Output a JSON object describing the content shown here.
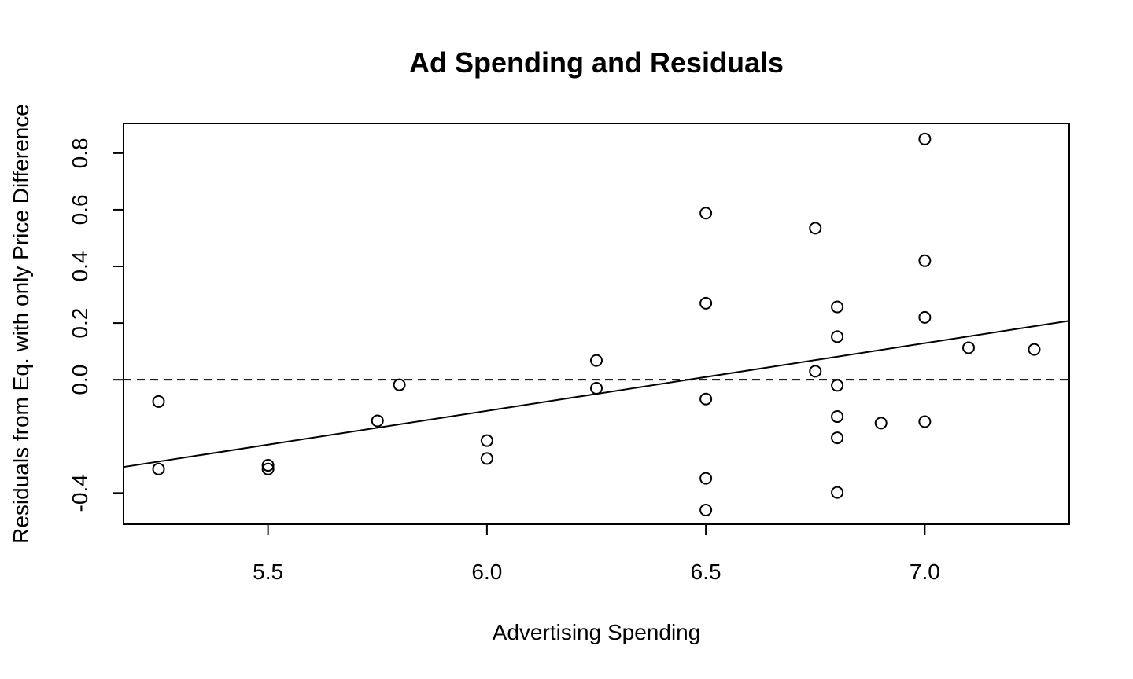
{
  "chart_data": {
    "type": "scatter",
    "title": "Ad Spending and Residuals",
    "xlabel": "Advertising Spending",
    "ylabel": "Residuals from Eq. with only Price Difference",
    "xlim": [
      5.17,
      7.33
    ],
    "ylim": [
      -0.51,
      0.905
    ],
    "x_ticks": [
      5.5,
      6.0,
      6.5,
      7.0
    ],
    "x_tick_labels": [
      "5.5",
      "6.0",
      "6.5",
      "7.0"
    ],
    "y_ticks": [
      -0.4,
      0.0,
      0.2,
      0.4,
      0.6,
      0.8
    ],
    "y_tick_labels": [
      "-0.4",
      "0.0",
      "0.2",
      "0.4",
      "0.6",
      "0.8"
    ],
    "grid": false,
    "points": [
      {
        "x": 5.25,
        "y": -0.077
      },
      {
        "x": 5.25,
        "y": -0.315
      },
      {
        "x": 5.5,
        "y": -0.302
      },
      {
        "x": 5.5,
        "y": -0.315
      },
      {
        "x": 5.75,
        "y": -0.145
      },
      {
        "x": 5.8,
        "y": -0.018
      },
      {
        "x": 6.0,
        "y": -0.215
      },
      {
        "x": 6.0,
        "y": -0.278
      },
      {
        "x": 6.25,
        "y": 0.068
      },
      {
        "x": 6.25,
        "y": -0.03
      },
      {
        "x": 6.5,
        "y": 0.588
      },
      {
        "x": 6.5,
        "y": 0.27
      },
      {
        "x": 6.5,
        "y": -0.068
      },
      {
        "x": 6.5,
        "y": -0.348
      },
      {
        "x": 6.5,
        "y": -0.46
      },
      {
        "x": 6.75,
        "y": 0.535
      },
      {
        "x": 6.75,
        "y": 0.03
      },
      {
        "x": 6.8,
        "y": 0.257
      },
      {
        "x": 6.8,
        "y": 0.152
      },
      {
        "x": 6.8,
        "y": -0.02
      },
      {
        "x": 6.8,
        "y": -0.13
      },
      {
        "x": 6.8,
        "y": -0.205
      },
      {
        "x": 6.8,
        "y": -0.398
      },
      {
        "x": 6.9,
        "y": -0.153
      },
      {
        "x": 7.0,
        "y": 0.85
      },
      {
        "x": 7.0,
        "y": 0.42
      },
      {
        "x": 7.0,
        "y": 0.22
      },
      {
        "x": 7.0,
        "y": -0.148
      },
      {
        "x": 7.1,
        "y": 0.113
      },
      {
        "x": 7.25,
        "y": 0.107
      }
    ],
    "fit_line": {
      "x": [
        5.17,
        7.33
      ],
      "y": [
        -0.308,
        0.208
      ]
    },
    "reference_line": {
      "y": 0.0,
      "style": "dashed"
    }
  }
}
